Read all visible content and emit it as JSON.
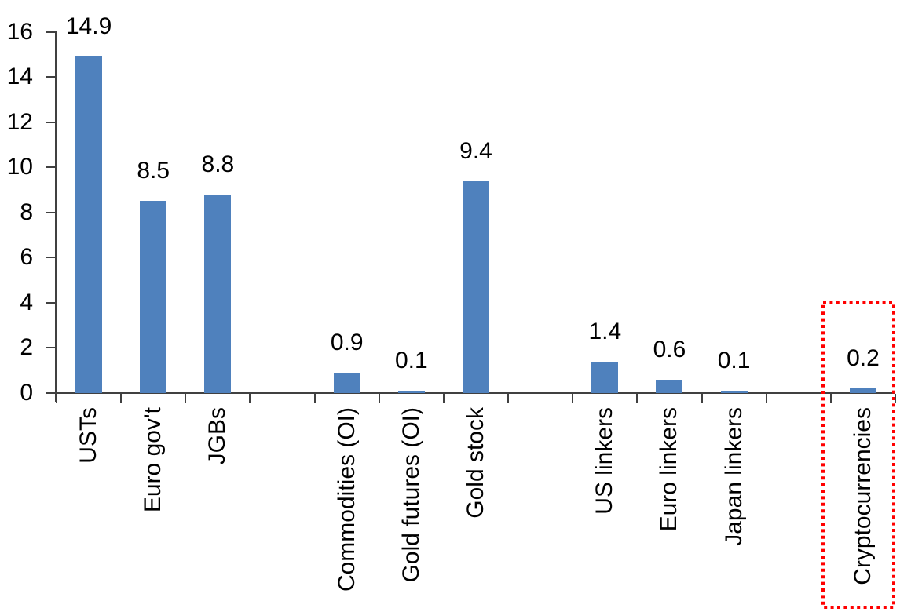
{
  "chart_data": {
    "type": "bar",
    "title": "",
    "xlabel": "",
    "ylabel": "",
    "categories": [
      "USTs",
      "Euro gov't",
      "JGBs",
      "",
      "Commodities (OI)",
      "Gold futures (OI)",
      "Gold stock",
      "",
      "US linkers",
      "Euro linkers",
      "Japan linkers",
      "",
      "Cryptocurrencies"
    ],
    "values": [
      14.9,
      8.5,
      8.8,
      null,
      0.9,
      0.1,
      9.4,
      null,
      1.4,
      0.6,
      0.1,
      null,
      0.2
    ],
    "value_labels": [
      "14.9",
      "8.5",
      "8.8",
      "",
      "0.9",
      "0.1",
      "9.4",
      "",
      "1.4",
      "0.6",
      "0.1",
      "",
      "0.2"
    ],
    "ylim": [
      0,
      16
    ],
    "yticks": [
      0,
      2,
      4,
      6,
      8,
      10,
      12,
      14,
      16
    ],
    "grid": false,
    "legend_position": "none",
    "bar_color": "#4F81BD",
    "axis_color": "#404040",
    "text_color": "#000000",
    "highlight": {
      "category": "Cryptocurrencies",
      "style": "dotted-box",
      "color": "#FF0000"
    }
  }
}
